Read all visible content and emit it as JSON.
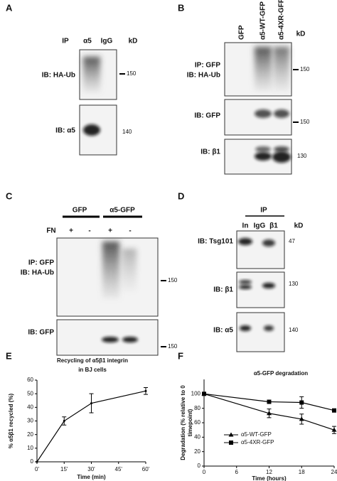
{
  "panels": {
    "A": {
      "letter": "A",
      "headers": [
        "IP",
        "α5",
        "IgG",
        "kD"
      ],
      "rows": [
        {
          "label": [
            "IB: HA-Ub"
          ],
          "marker": "150"
        },
        {
          "label": [
            "IB: α5"
          ],
          "marker": "140"
        }
      ]
    },
    "B": {
      "letter": "B",
      "lanes": [
        "GFP",
        "α5-WT-GFP",
        "α5-4XR-GFP"
      ],
      "unit": "kD",
      "rows": [
        {
          "label": [
            "IP: GFP",
            "IB: HA-Ub"
          ],
          "marker": "150"
        },
        {
          "label": [
            "IB: GFP"
          ],
          "marker": "150"
        },
        {
          "label": [
            "IB: β1"
          ],
          "marker": "130"
        }
      ]
    },
    "C": {
      "letter": "C",
      "groups": [
        "GFP",
        "α5-GFP"
      ],
      "treatment": "FN",
      "signs": [
        "+",
        "-",
        "+",
        "-"
      ],
      "rows": [
        {
          "label": [
            "IP: GFP",
            "IB: HA-Ub"
          ],
          "marker": "150"
        },
        {
          "label": [
            "IB: GFP"
          ],
          "marker": "150"
        }
      ]
    },
    "D": {
      "letter": "D",
      "ip": "IP",
      "lanes": [
        "In",
        "IgG",
        "β1"
      ],
      "unit": "kD",
      "rows": [
        {
          "label": [
            "IB: Tsg101"
          ],
          "marker": "47"
        },
        {
          "label": [
            "IB: β1"
          ],
          "marker": "130"
        },
        {
          "label": [
            "IB: α5"
          ],
          "marker": "140"
        }
      ]
    }
  },
  "chart_data": [
    {
      "type": "line",
      "panel": "E",
      "title": [
        "Recycling of α5β1 integrin",
        "in BJ cells"
      ],
      "x_label": "Time (min)",
      "y_label": "% α5β1 recycled (%)",
      "x": [
        0,
        15,
        30,
        60
      ],
      "values": [
        0,
        30,
        43,
        52
      ],
      "errors": [
        null,
        3,
        7,
        2.5
      ],
      "color": "#000000",
      "xlim": [
        0,
        60
      ],
      "xticks": [
        {
          "value": 0,
          "label": "0'"
        },
        {
          "value": 15,
          "label": "15'"
        },
        {
          "value": 30,
          "label": "30'"
        },
        {
          "value": 45,
          "label": "45'"
        },
        {
          "value": 60,
          "label": "60'"
        }
      ],
      "ylim": [
        0,
        60
      ],
      "yticks": [
        0,
        10,
        20,
        30,
        40,
        50,
        60
      ]
    },
    {
      "type": "line",
      "panel": "F",
      "title": [
        "α5-GFP degradation"
      ],
      "x_label": "Time (hours)",
      "y_label": [
        "Degradation (% relative to 0",
        "timepoint)"
      ],
      "x": [
        0,
        12,
        18,
        24
      ],
      "series": [
        {
          "name": "α5-WT-GFP",
          "color": "#000000",
          "marker": "triangle",
          "values": [
            100,
            73,
            65,
            50
          ],
          "errors": [
            null,
            6,
            7,
            5
          ]
        },
        {
          "name": "α5-4XR-GFP",
          "color": "#000000",
          "marker": "square",
          "values": [
            100,
            89,
            88,
            77
          ],
          "errors": [
            null,
            2,
            8,
            2
          ]
        }
      ],
      "xlim": [
        0,
        24
      ],
      "xticks": [
        0,
        6,
        12,
        18,
        24
      ],
      "ylim": [
        0,
        120
      ],
      "yticks": [
        0,
        20,
        40,
        60,
        80,
        100
      ],
      "legend": "lower left"
    }
  ]
}
